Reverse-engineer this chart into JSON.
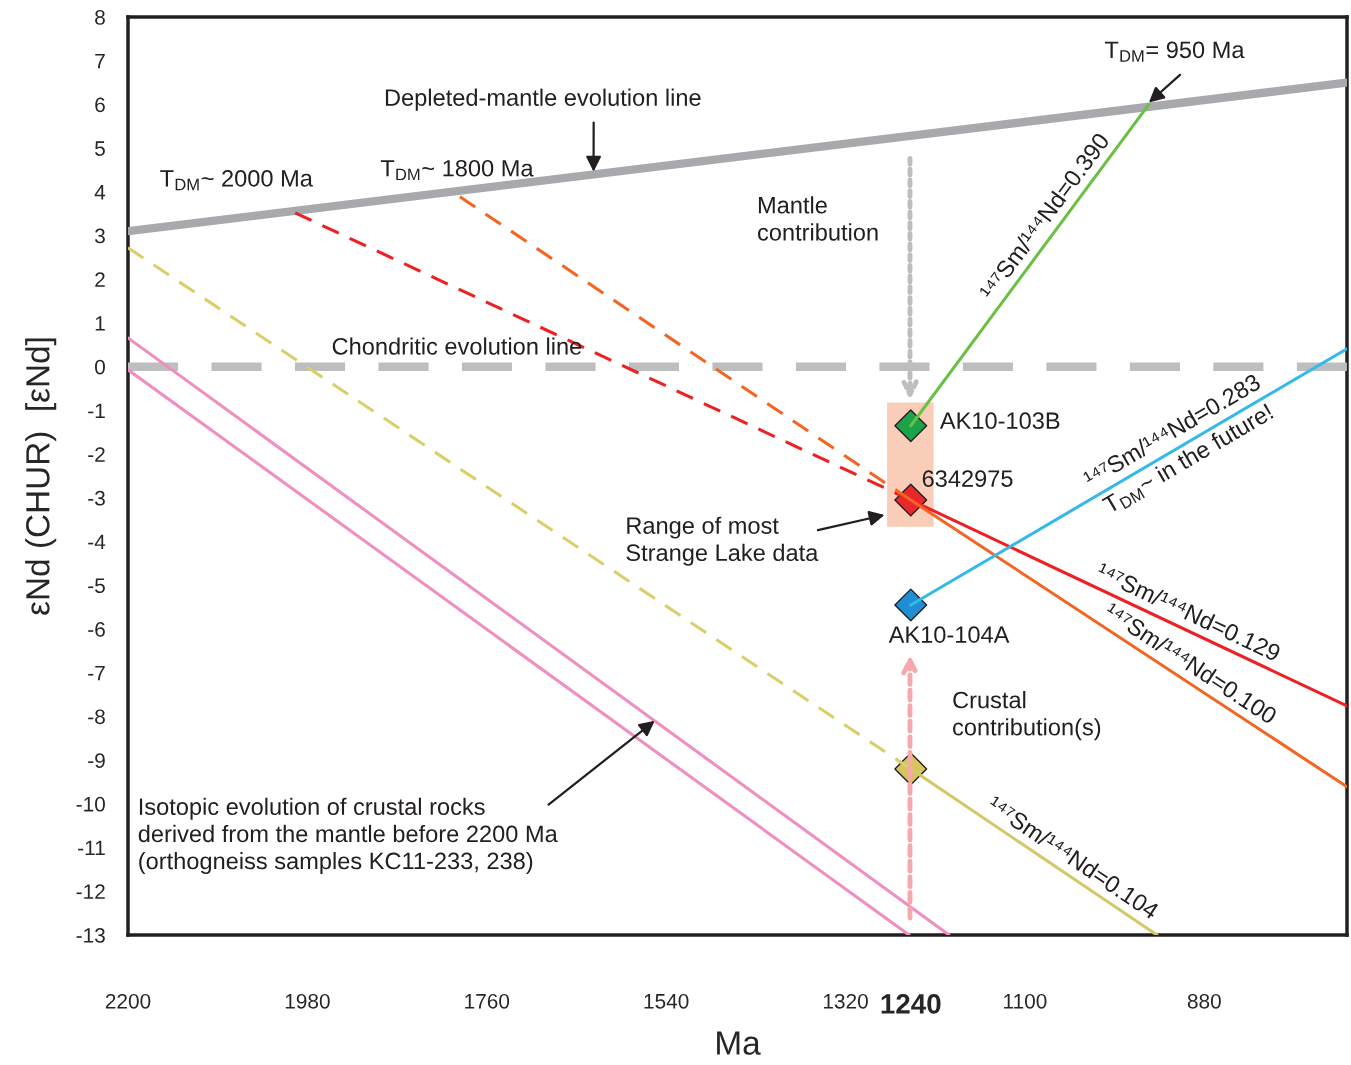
{
  "chart_data": {
    "type": "line",
    "xlabel": "Ma",
    "ylabel": "εNd (CHUR)  [εNd]",
    "xlim": [
      2200,
      705
    ],
    "ylim": [
      -13,
      8
    ],
    "xticks": [
      2200,
      1980,
      1760,
      1540,
      1320,
      {
        "value": 1240,
        "label": "1240"
      },
      1100,
      880
    ],
    "yticks": [
      -13,
      -12,
      -11,
      -10,
      -9,
      -8,
      -7,
      -6,
      -5,
      -4,
      -3,
      -2,
      -1,
      0,
      1,
      2,
      3,
      4,
      5,
      6,
      7,
      8
    ],
    "grid": false,
    "legend": false,
    "series": [
      {
        "type": "area",
        "color": "#f9cdb7",
        "x": [
          1269,
          1212,
          1212,
          1269
        ],
        "values": [
          -0.82,
          -0.82,
          -3.66,
          -3.66
        ]
      },
      {
        "color": "#a7a9ac",
        "line_style": "solid",
        "x": [
          2200,
          705
        ],
        "values": [
          3.1,
          6.5
        ]
      },
      {
        "color": "#bcbec0",
        "line_style": "dashed",
        "x": [
          2200,
          705
        ],
        "values": [
          0,
          0
        ]
      },
      {
        "color": "#ef8fc0",
        "line_style": "solid",
        "x": [
          2200,
          1193
        ],
        "values": [
          0.66,
          -13
        ]
      },
      {
        "color": "#ef8fc0",
        "line_style": "solid",
        "x": [
          2200,
          1242
        ],
        "values": [
          -0.07,
          -13
        ]
      },
      {
        "color": "#d9cf6b",
        "line_style": "dashed",
        "x": [
          2200,
          1240
        ],
        "values": [
          2.72,
          -9.2
        ]
      },
      {
        "color": "#d4c96a",
        "line_style": "solid",
        "name": "¹⁴⁷Sm/¹⁴⁴Nd=0.104",
        "x": [
          1240,
          938
        ],
        "values": [
          -9.2,
          -13
        ]
      },
      {
        "color": "#ed2024",
        "line_style": "dashed",
        "x": [
          1995,
          1240
        ],
        "values": [
          3.52,
          -3.05
        ]
      },
      {
        "color": "#ed2024",
        "line_style": "solid",
        "name": "¹⁴⁷Sm/¹⁴⁴Nd=0.129",
        "x": [
          1240,
          705
        ],
        "values": [
          -3.05,
          -7.76
        ]
      },
      {
        "color": "#f26522",
        "line_style": "dashed",
        "x": [
          1793,
          1240
        ],
        "values": [
          3.89,
          -3.05
        ]
      },
      {
        "color": "#f26522",
        "line_style": "solid",
        "name": "¹⁴⁷Sm/¹⁴⁴Nd=0.100",
        "x": [
          1240,
          705
        ],
        "values": [
          -3.05,
          -9.61
        ]
      },
      {
        "color": "#6cbf45",
        "line_style": "solid",
        "name": "¹⁴⁷Sm/¹⁴⁴Nd=0.390",
        "x": [
          1240,
          948
        ],
        "values": [
          -1.35,
          6.0
        ]
      },
      {
        "color": "#35b9e9",
        "line_style": "solid",
        "name": "¹⁴⁷Sm/¹⁴⁴Nd=0.283\nT$_{DM}$~ in the future!",
        "x": [
          1240,
          705
        ],
        "values": [
          -5.45,
          0.41
        ]
      },
      {
        "type": "scatter",
        "marker": "diamond",
        "x": [
          1240,
          1240,
          1240,
          1240
        ],
        "values": [
          -1.35,
          -3.05,
          -5.45,
          -9.2
        ],
        "colors": [
          "#1aa34a",
          "#e8282b",
          "#1e8fd5",
          "#d6c55e"
        ]
      }
    ],
    "annotations": [
      "T$_{DM}$~ 2000 Ma",
      "T$_{DM}$~ 1800 Ma",
      {
        "text": "Depleted-mantle evolution line",
        "x": 1629,
        "y": 4.46
      },
      {
        "text": "T$_{DM}$= 950 Ma",
        "x": 948,
        "y": 6.04
      },
      "Mantle\ncontribution",
      "Chondritic evolution line",
      "AK10-103B",
      "6342975",
      {
        "text": "Range of most\nStrange Lake data",
        "x": 1272,
        "y": -3.39
      },
      "AK10-104A",
      "Crustal\ncontribution(s)",
      {
        "text": "Isotopic evolution of crustal rocks\nderived from the mantle before 2200 Ma\n(orthogneiss samples KC11-233, 238)",
        "x": 1554,
        "y": -8.1
      }
    ]
  }
}
